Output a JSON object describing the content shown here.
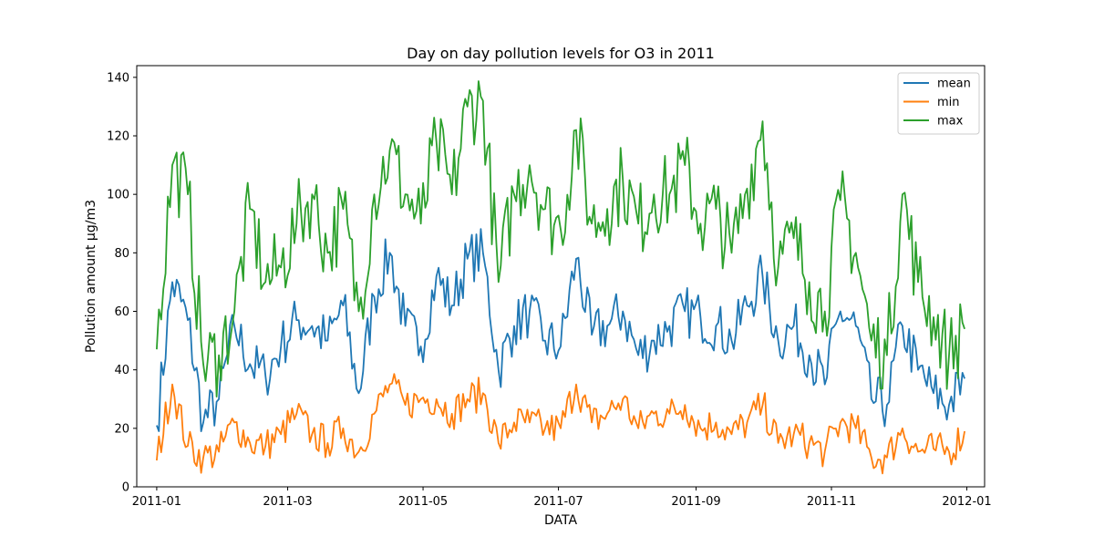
{
  "chart_data": {
    "type": "line",
    "title": "Day on day pollution levels for O3 in 2011",
    "xlabel": "DATA",
    "ylabel": "Pollution amount µg/m3",
    "xlim": [
      "2010-12-23",
      "2012-01-09"
    ],
    "ylim": [
      0,
      144
    ],
    "x_ticks": [
      "2011-01",
      "2011-03",
      "2011-05",
      "2011-07",
      "2011-09",
      "2011-11",
      "2012-01"
    ],
    "y_ticks": [
      0,
      20,
      40,
      60,
      80,
      100,
      120,
      140
    ],
    "grid": false,
    "legend_position": "top-right",
    "x": [
      "2011-01-01",
      "2011-01-08",
      "2011-01-15",
      "2011-01-22",
      "2011-01-29",
      "2011-02-05",
      "2011-02-12",
      "2011-02-19",
      "2011-02-26",
      "2011-03-05",
      "2011-03-12",
      "2011-03-19",
      "2011-03-26",
      "2011-04-02",
      "2011-04-09",
      "2011-04-16",
      "2011-04-23",
      "2011-04-30",
      "2011-05-07",
      "2011-05-14",
      "2011-05-21",
      "2011-05-28",
      "2011-06-04",
      "2011-06-11",
      "2011-06-18",
      "2011-06-25",
      "2011-07-02",
      "2011-07-09",
      "2011-07-16",
      "2011-07-23",
      "2011-07-30",
      "2011-08-06",
      "2011-08-13",
      "2011-08-20",
      "2011-08-27",
      "2011-09-03",
      "2011-09-10",
      "2011-09-17",
      "2011-09-24",
      "2011-10-01",
      "2011-10-08",
      "2011-10-15",
      "2011-10-22",
      "2011-10-29",
      "2011-11-05",
      "2011-11-12",
      "2011-11-19",
      "2011-11-26",
      "2011-12-03",
      "2011-12-10",
      "2011-12-17",
      "2011-12-24",
      "2011-12-31"
    ],
    "series": [
      {
        "name": "mean",
        "color": "#1f77b4",
        "values": [
          21,
          70,
          57,
          22,
          30,
          55,
          42,
          38,
          48,
          57,
          55,
          50,
          62,
          32,
          65,
          80,
          55,
          48,
          72,
          62,
          78,
          80,
          40,
          55,
          60,
          50,
          48,
          78,
          52,
          55,
          60,
          45,
          50,
          55,
          60,
          58,
          55,
          50,
          62,
          72,
          50,
          55,
          45,
          35,
          60,
          55,
          30,
          28,
          55,
          40,
          32,
          28,
          37
        ]
      },
      {
        "name": "min",
        "color": "#ff7f0e",
        "values": [
          9,
          35,
          14,
          10,
          12,
          22,
          15,
          14,
          18,
          25,
          18,
          15,
          20,
          12,
          25,
          35,
          28,
          30,
          30,
          25,
          30,
          32,
          15,
          22,
          22,
          20,
          20,
          35,
          22,
          25,
          30,
          20,
          25,
          25,
          28,
          20,
          22,
          18,
          22,
          28,
          15,
          18,
          15,
          12,
          22,
          20,
          10,
          10,
          20,
          12,
          13,
          12,
          19
        ]
      },
      {
        "name": "max",
        "color": "#2ca02c",
        "values": [
          47,
          110,
          100,
          42,
          45,
          60,
          95,
          70,
          75,
          90,
          100,
          80,
          95,
          60,
          100,
          115,
          100,
          90,
          118,
          100,
          130,
          132,
          70,
          100,
          110,
          95,
          88,
          122,
          90,
          95,
          105,
          90,
          100,
          100,
          110,
          90,
          95,
          80,
          102,
          125,
          75,
          85,
          70,
          60,
          98,
          80,
          50,
          45,
          100,
          70,
          58,
          45,
          54
        ]
      }
    ]
  }
}
